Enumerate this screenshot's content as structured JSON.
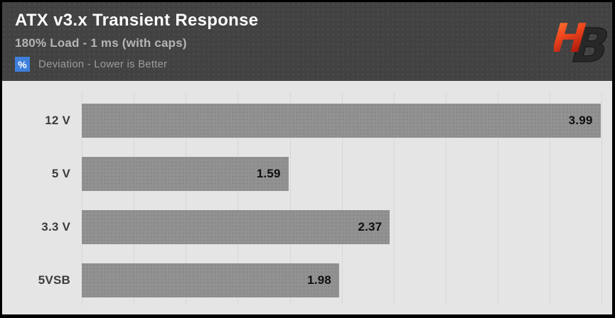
{
  "header": {
    "title": "ATX v3.x Transient Response",
    "subtitle": "180% Load - 1 ms (with caps)",
    "legend_badge": "%",
    "legend_text": "Deviation - Lower is Better",
    "logo_h": "H",
    "logo_b": "B"
  },
  "colors": {
    "badge_blue": "#3f80dc",
    "bar_gray": "#929292",
    "header_dark": "#424242",
    "plot_background": "#e5e5e5",
    "logo_red_top": "#ff8a3c",
    "logo_red_mid": "#f44a1e",
    "logo_red_bottom": "#a3120a",
    "logo_b_dark": "#282828"
  },
  "chart_data": {
    "type": "bar",
    "orientation": "horizontal",
    "title": "ATX v3.x Transient Response",
    "subtitle": "180% Load - 1 ms (with caps)",
    "legend": "% Deviation - Lower is Better",
    "categories": [
      "12 V",
      "5 V",
      "3.3 V",
      "5VSB"
    ],
    "values": [
      3.99,
      1.59,
      2.37,
      1.98
    ],
    "xlabel": "",
    "ylabel": "",
    "xlim": [
      0,
      4.08
    ],
    "gridline_step": 0.4,
    "grid": true,
    "value_labels": "inside-end",
    "bar_color": "#929292",
    "lower_is_better": true
  }
}
